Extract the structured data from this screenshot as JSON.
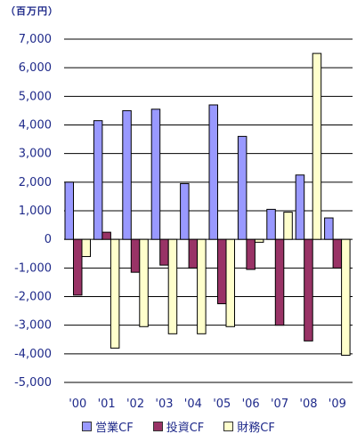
{
  "chart_data": {
    "type": "bar",
    "unit_label": "（百万円）",
    "categories": [
      "'00",
      "'01",
      "'02",
      "'03",
      "'04",
      "'05",
      "'06",
      "'07",
      "'08",
      "'09"
    ],
    "series": [
      {
        "name": "営業CF",
        "color": "#9999ff",
        "values": [
          2000,
          4150,
          4500,
          4550,
          1950,
          4700,
          3600,
          1050,
          2250,
          750
        ]
      },
      {
        "name": "投資CF",
        "color": "#993366",
        "values": [
          -1950,
          250,
          -1150,
          -900,
          -1000,
          -2250,
          -1050,
          -3000,
          -3550,
          -1000
        ]
      },
      {
        "name": "財務CF",
        "color": "#ffffcc",
        "values": [
          -600,
          -3800,
          -3050,
          -3300,
          -3300,
          -3050,
          -100,
          950,
          6500,
          -4050
        ]
      }
    ],
    "ylim": [
      -5000,
      7000
    ],
    "yticks": [
      7000,
      6000,
      5000,
      4000,
      3000,
      2000,
      1000,
      0,
      -1000,
      -2000,
      -3000,
      -4000,
      -5000
    ],
    "ytick_labels": [
      "7,000",
      "6,000",
      "5,000",
      "4,000",
      "3,000",
      "2,000",
      "1,000",
      "0",
      "-1,000",
      "-2,000",
      "-3,000",
      "-4,000",
      "-5,000"
    ],
    "grid": true,
    "legend_position": "bottom",
    "title": "",
    "xlabel": "",
    "ylabel": ""
  }
}
